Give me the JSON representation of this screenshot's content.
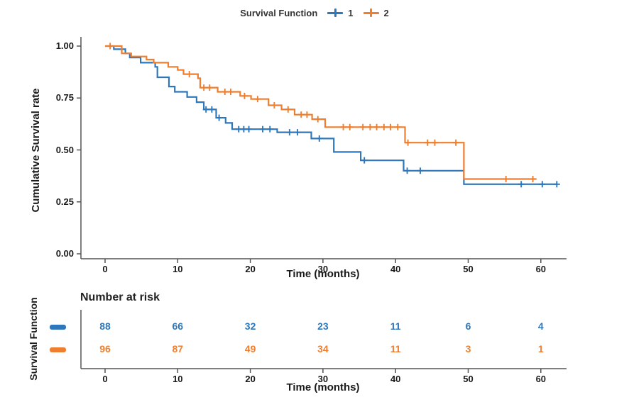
{
  "colors": {
    "group1": "#2E77BB",
    "group2": "#EE7E30",
    "axis": "#555555",
    "text": "#1a1a1a"
  },
  "legend": {
    "title": "Survival Function",
    "items": [
      {
        "label": "1"
      },
      {
        "label": "2"
      }
    ]
  },
  "main_plot": {
    "ylabel": "Cumulative Survival rate",
    "xlabel": "Time (months)",
    "y_tick_labels": [
      "1.00",
      "0.75",
      "0.50",
      "0.25",
      "0.00"
    ],
    "x_tick_labels": [
      "0",
      "10",
      "20",
      "30",
      "40",
      "50",
      "60"
    ]
  },
  "risk_table": {
    "title": "Number at risk",
    "ylabel": "Survival Function",
    "xlabel": "Time (months)",
    "x_tick_labels": [
      "0",
      "10",
      "20",
      "30",
      "40",
      "50",
      "60"
    ],
    "rows": [
      {
        "label": "1",
        "counts": [
          "88",
          "66",
          "32",
          "23",
          "11",
          "6",
          "4"
        ]
      },
      {
        "label": "2",
        "counts": [
          "96",
          "87",
          "49",
          "34",
          "11",
          "3",
          "1"
        ]
      }
    ]
  },
  "chart_data": {
    "type": "line",
    "subtype": "kaplan-meier-step",
    "title": "Survival Function",
    "xlabel": "Time (months)",
    "ylabel": "Cumulative Survival rate",
    "xlim": [
      0,
      63
    ],
    "ylim": [
      0,
      1
    ],
    "x_ticks": [
      0,
      10,
      20,
      30,
      40,
      50,
      60
    ],
    "y_ticks": [
      1.0,
      0.75,
      0.5,
      0.25,
      0.0
    ],
    "grid": false,
    "legend_position": "top",
    "series": [
      {
        "name": "1",
        "steps": [
          [
            0,
            1.0
          ],
          [
            1.2,
            0.985
          ],
          [
            2.8,
            0.965
          ],
          [
            3.4,
            0.945
          ],
          [
            4.9,
            0.92
          ],
          [
            6.9,
            0.9
          ],
          [
            7.2,
            0.85
          ],
          [
            8.8,
            0.805
          ],
          [
            9.6,
            0.78
          ],
          [
            11.3,
            0.755
          ],
          [
            12.6,
            0.73
          ],
          [
            13.6,
            0.695
          ],
          [
            15.3,
            0.655
          ],
          [
            16.6,
            0.63
          ],
          [
            17.5,
            0.6
          ],
          [
            23.7,
            0.585
          ],
          [
            28.4,
            0.555
          ],
          [
            31.5,
            0.49
          ],
          [
            35.2,
            0.45
          ],
          [
            41.1,
            0.4
          ],
          [
            49.4,
            0.335
          ]
        ],
        "end_time": 62.2,
        "censors": [
          [
            13.9,
            0.695
          ],
          [
            14.7,
            0.695
          ],
          [
            15.7,
            0.655
          ],
          [
            18.4,
            0.6
          ],
          [
            19.1,
            0.6
          ],
          [
            19.8,
            0.6
          ],
          [
            21.7,
            0.6
          ],
          [
            22.7,
            0.6
          ],
          [
            25.4,
            0.585
          ],
          [
            26.5,
            0.585
          ],
          [
            29.5,
            0.555
          ],
          [
            35.7,
            0.45
          ],
          [
            41.6,
            0.4
          ],
          [
            43.4,
            0.4
          ],
          [
            57.3,
            0.335
          ],
          [
            60.2,
            0.335
          ],
          [
            62.2,
            0.335
          ]
        ]
      },
      {
        "name": "2",
        "steps": [
          [
            0,
            1.0
          ],
          [
            2.3,
            0.965
          ],
          [
            3.6,
            0.95
          ],
          [
            5.7,
            0.935
          ],
          [
            6.7,
            0.92
          ],
          [
            8.7,
            0.9
          ],
          [
            10.0,
            0.885
          ],
          [
            10.8,
            0.865
          ],
          [
            12.8,
            0.845
          ],
          [
            13.1,
            0.8
          ],
          [
            15.5,
            0.78
          ],
          [
            18.6,
            0.76
          ],
          [
            20.1,
            0.745
          ],
          [
            22.5,
            0.715
          ],
          [
            24.3,
            0.695
          ],
          [
            26.1,
            0.67
          ],
          [
            28.5,
            0.648
          ],
          [
            30.3,
            0.61
          ],
          [
            41.3,
            0.535
          ],
          [
            49.4,
            0.36
          ]
        ],
        "end_time": 59.4,
        "censors": [
          [
            0.7,
            1.0
          ],
          [
            11.6,
            0.865
          ],
          [
            13.6,
            0.8
          ],
          [
            14.4,
            0.8
          ],
          [
            16.5,
            0.78
          ],
          [
            17.3,
            0.78
          ],
          [
            19.2,
            0.76
          ],
          [
            21.0,
            0.745
          ],
          [
            23.3,
            0.715
          ],
          [
            25.2,
            0.695
          ],
          [
            27.0,
            0.67
          ],
          [
            27.8,
            0.67
          ],
          [
            29.3,
            0.648
          ],
          [
            32.8,
            0.61
          ],
          [
            33.7,
            0.61
          ],
          [
            35.5,
            0.61
          ],
          [
            36.5,
            0.61
          ],
          [
            37.4,
            0.61
          ],
          [
            38.4,
            0.61
          ],
          [
            39.3,
            0.61
          ],
          [
            40.3,
            0.61
          ],
          [
            41.7,
            0.535
          ],
          [
            44.4,
            0.535
          ],
          [
            45.4,
            0.535
          ],
          [
            48.3,
            0.535
          ],
          [
            55.2,
            0.36
          ],
          [
            58.9,
            0.36
          ]
        ]
      }
    ],
    "number_at_risk": {
      "title": "Number at risk",
      "times": [
        0,
        10,
        20,
        30,
        40,
        50,
        60
      ],
      "rows": [
        {
          "name": "1",
          "counts": [
            88,
            66,
            32,
            23,
            11,
            6,
            4
          ]
        },
        {
          "name": "2",
          "counts": [
            96,
            87,
            49,
            34,
            11,
            3,
            1
          ]
        }
      ]
    }
  }
}
